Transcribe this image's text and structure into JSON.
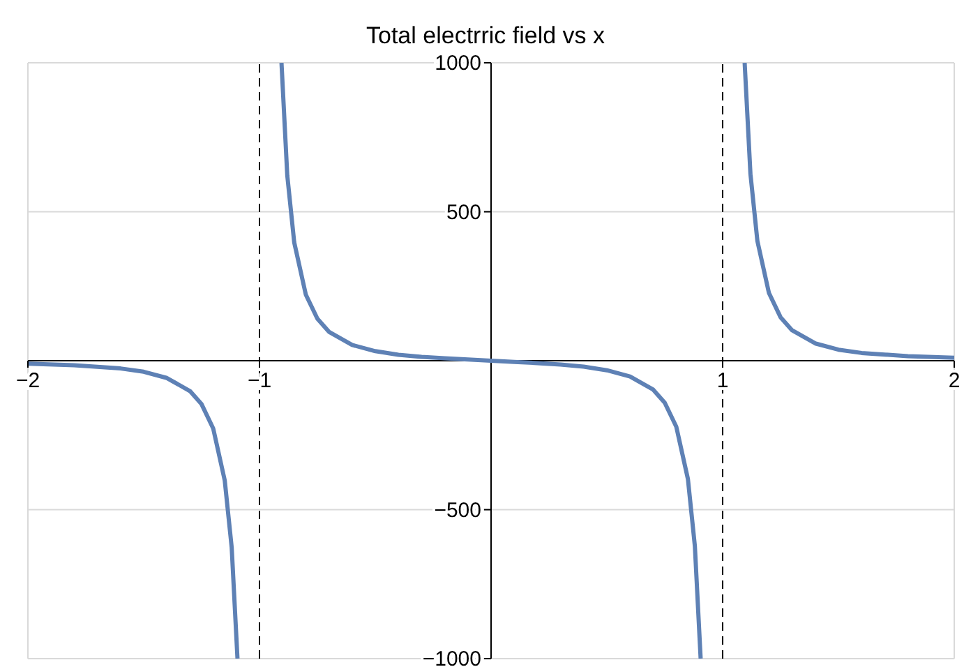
{
  "chart_data": {
    "type": "line",
    "title": "Total electrric field vs x",
    "x": [
      -2,
      -1.8,
      -1.6,
      -1.5,
      -1.4,
      -1.3,
      -1.25,
      -1.2,
      -1.15,
      -1.12,
      -1.095,
      -1,
      -0.905,
      -0.88,
      -0.85,
      -0.8,
      -0.75,
      -0.7,
      -0.6,
      -0.5,
      -0.4,
      -0.3,
      -0.2,
      -0.1,
      0,
      0.1,
      0.2,
      0.3,
      0.4,
      0.5,
      0.6,
      0.7,
      0.75,
      0.8,
      0.85,
      0.88,
      0.905,
      1,
      1.095,
      1.12,
      1.15,
      1.2,
      1.25,
      1.3,
      1.4,
      1.5,
      1.6,
      1.8,
      2
    ],
    "series": [
      {
        "color": "#5e81b5",
        "values": [
          -10,
          -15,
          -26,
          -37,
          -58,
          -102,
          -146,
          -227,
          -402,
          -627,
          -1000,
          null,
          1000,
          622,
          397,
          222,
          141,
          97,
          53,
          32,
          20,
          13,
          8,
          4,
          0,
          -4,
          -8,
          -13,
          -20,
          -32,
          -53,
          -97,
          -141,
          -222,
          -397,
          -622,
          -1000,
          null,
          1000,
          627,
          402,
          227,
          146,
          102,
          58,
          37,
          26,
          15,
          10
        ]
      }
    ],
    "xlim": [
      -2,
      2
    ],
    "ylim": [
      -1000,
      1000
    ],
    "xticks": [
      -2,
      -1,
      1,
      2
    ],
    "yticks": [
      -1000,
      -500,
      500,
      1000
    ],
    "grid": true,
    "marker": "none",
    "line_style": "solid",
    "ref_lines": [
      {
        "axis": "x",
        "value": -1,
        "color": "#000000",
        "line_style": "dashed"
      },
      {
        "axis": "x",
        "value": 1,
        "color": "#000000",
        "line_style": "dashed"
      }
    ]
  }
}
